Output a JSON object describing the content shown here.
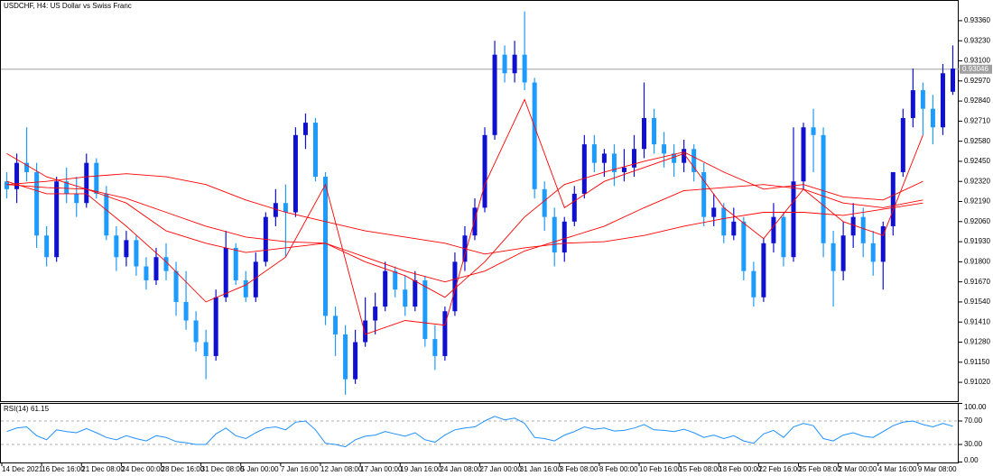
{
  "chart_data": [
    {
      "type": "candlestick",
      "title": "USDCHF, H4:  US Dollar vs Swiss Franc",
      "categories": [
        "14 Dec 2021",
        null,
        null,
        null,
        "16 Dec 16:00",
        null,
        null,
        null,
        "21 Dec 08:00",
        null,
        null,
        null,
        "24 Dec 00:00",
        null,
        null,
        null,
        "28 Dec 16:00",
        null,
        null,
        null,
        "31 Dec 08:00",
        null,
        null,
        null,
        "5 Jan 00:00",
        null,
        null,
        null,
        "7 Jan 16:00",
        null,
        null,
        null,
        "12 Jan 08:00",
        null,
        null,
        null,
        "17 Jan 00:00",
        null,
        null,
        null,
        "19 Jan 16:00",
        null,
        null,
        null,
        "24 Jan 08:00",
        null,
        null,
        null,
        "27 Jan 00:00",
        null,
        null,
        null,
        "31 Jan 16:00",
        null,
        null,
        null,
        "3 Feb 08:00",
        null,
        null,
        null,
        "8 Feb 00:00",
        null,
        null,
        null,
        "10 Feb 16:00",
        null,
        null,
        null,
        "15 Feb 08:00",
        null,
        null,
        null,
        "18 Feb 00:00",
        null,
        null,
        null,
        "22 Feb 16:00",
        null,
        null,
        null,
        "25 Feb 08:00",
        null,
        null,
        null,
        "2 Mar 00:00",
        null,
        null,
        null,
        "4 Mar 16:00",
        null,
        null,
        null,
        "9 Mar 08:00",
        null,
        null,
        null
      ],
      "open": [
        0.9232,
        0.9227,
        0.9244,
        0.9238,
        0.9197,
        0.9183,
        0.9232,
        0.9224,
        0.9218,
        0.9244,
        0.9224,
        0.9197,
        0.9183,
        0.9194,
        0.9177,
        0.9168,
        0.9183,
        0.9174,
        0.9154,
        0.9142,
        0.9128,
        0.9119,
        0.9157,
        0.9189,
        0.9168,
        0.9157,
        0.918,
        0.9209,
        0.9218,
        0.9212,
        0.9262,
        0.927,
        0.9235,
        0.9145,
        0.9133,
        0.9104,
        0.9128,
        0.9142,
        0.9151,
        0.9174,
        0.9162,
        0.9151,
        0.9168,
        0.913,
        0.9119,
        0.9148,
        0.918,
        0.9197,
        0.9215,
        0.9262,
        0.9314,
        0.9302,
        0.9314,
        0.9296,
        0.9227,
        0.9209,
        0.9186,
        0.9206,
        0.9224,
        0.9256,
        0.9244,
        0.925,
        0.9238,
        0.9241,
        0.9253,
        0.9273,
        0.9256,
        0.925,
        0.9244,
        0.9253,
        0.9238,
        0.9209,
        0.9215,
        0.9197,
        0.9206,
        0.9174,
        0.9157,
        0.9192,
        0.9209,
        0.9183,
        0.9232,
        0.9267,
        0.9262,
        0.9192,
        0.9174,
        0.9197,
        0.9209,
        0.9192,
        0.918,
        0.9203,
        0.9238,
        0.9273,
        0.9291,
        0.9279,
        0.9267,
        0.929
      ],
      "high": [
        0.9238,
        0.925,
        0.9267,
        0.9244,
        0.9203,
        0.9235,
        0.9241,
        0.9235,
        0.925,
        0.9247,
        0.9229,
        0.9203,
        0.92,
        0.9197,
        0.9183,
        0.9189,
        0.9192,
        0.918,
        0.9174,
        0.9148,
        0.9136,
        0.9162,
        0.92,
        0.9192,
        0.9174,
        0.9186,
        0.9212,
        0.9227,
        0.923,
        0.9267,
        0.9276,
        0.9273,
        0.9238,
        0.9151,
        0.9139,
        0.9136,
        0.9157,
        0.916,
        0.918,
        0.9177,
        0.9171,
        0.9174,
        0.9171,
        0.9139,
        0.9151,
        0.9186,
        0.9203,
        0.9221,
        0.9267,
        0.9323,
        0.932,
        0.9323,
        0.9342,
        0.9299,
        0.9232,
        0.9215,
        0.9209,
        0.9229,
        0.9262,
        0.9262,
        0.9253,
        0.9256,
        0.9253,
        0.9262,
        0.9296,
        0.9279,
        0.9264,
        0.9256,
        0.9259,
        0.9256,
        0.9244,
        0.9224,
        0.9218,
        0.9215,
        0.9209,
        0.918,
        0.9195,
        0.9218,
        0.9212,
        0.9267,
        0.927,
        0.9279,
        0.9267,
        0.92,
        0.9206,
        0.9218,
        0.9215,
        0.92,
        0.9206,
        0.9238,
        0.9279,
        0.9305,
        0.9296,
        0.9288,
        0.9308,
        0.932
      ],
      "low": [
        0.9221,
        0.9218,
        0.9232,
        0.9189,
        0.9177,
        0.918,
        0.9218,
        0.9209,
        0.9215,
        0.9221,
        0.9194,
        0.9174,
        0.9177,
        0.9171,
        0.9162,
        0.9165,
        0.9168,
        0.9145,
        0.9136,
        0.9122,
        0.9104,
        0.9116,
        0.9154,
        0.9165,
        0.9154,
        0.9154,
        0.9177,
        0.9203,
        0.9183,
        0.9209,
        0.9253,
        0.9232,
        0.9139,
        0.9119,
        0.9094,
        0.9101,
        0.9125,
        0.9133,
        0.9148,
        0.9157,
        0.9145,
        0.9148,
        0.9125,
        0.911,
        0.9116,
        0.9145,
        0.9174,
        0.9194,
        0.9212,
        0.9259,
        0.9296,
        0.9296,
        0.9291,
        0.9221,
        0.92,
        0.9177,
        0.918,
        0.9203,
        0.9221,
        0.9238,
        0.9235,
        0.9229,
        0.9232,
        0.9235,
        0.9247,
        0.925,
        0.9241,
        0.9235,
        0.9238,
        0.9232,
        0.9203,
        0.9203,
        0.9192,
        0.9194,
        0.9168,
        0.9151,
        0.9154,
        0.9186,
        0.9177,
        0.918,
        0.9227,
        0.9238,
        0.9183,
        0.9151,
        0.9168,
        0.9189,
        0.9183,
        0.9171,
        0.9162,
        0.9197,
        0.9235,
        0.9267,
        0.9262,
        0.9256,
        0.9262,
        0.9288
      ],
      "close": [
        0.9227,
        0.9244,
        0.9238,
        0.9197,
        0.9183,
        0.9232,
        0.9224,
        0.9218,
        0.9244,
        0.9224,
        0.9197,
        0.9183,
        0.9194,
        0.9177,
        0.9168,
        0.9183,
        0.9174,
        0.9154,
        0.9142,
        0.9128,
        0.9119,
        0.9157,
        0.9189,
        0.9168,
        0.9157,
        0.918,
        0.9209,
        0.9218,
        0.9212,
        0.9262,
        0.927,
        0.9235,
        0.9145,
        0.9133,
        0.9104,
        0.9128,
        0.9142,
        0.9151,
        0.9174,
        0.9162,
        0.9151,
        0.9168,
        0.913,
        0.9119,
        0.9148,
        0.918,
        0.9197,
        0.9215,
        0.9262,
        0.9314,
        0.9302,
        0.9314,
        0.9296,
        0.9227,
        0.9209,
        0.9186,
        0.9206,
        0.9224,
        0.9256,
        0.9244,
        0.925,
        0.9238,
        0.9241,
        0.9253,
        0.9273,
        0.9256,
        0.925,
        0.9244,
        0.9253,
        0.9238,
        0.9209,
        0.9215,
        0.9197,
        0.9206,
        0.9174,
        0.9157,
        0.9192,
        0.9209,
        0.9183,
        0.9232,
        0.9267,
        0.9262,
        0.9192,
        0.9174,
        0.9197,
        0.9209,
        0.9192,
        0.918,
        0.9203,
        0.9238,
        0.9273,
        0.9291,
        0.9279,
        0.9267,
        0.9302,
        0.9305
      ],
      "bull_color": "#1010d0",
      "bear_color": "#1e9bff",
      "moving_averages": [
        {
          "color": "#ff0000",
          "values": [
            0.9232,
            0.9224,
            0.9224,
            0.9203,
            0.918,
            0.9154,
            0.9165,
            0.9183,
            0.923,
            0.9133,
            0.9142,
            0.9139,
            0.923,
            0.9285,
            0.9215,
            0.9232,
            0.9241,
            0.925,
            0.9215,
            0.9195,
            0.9227,
            0.9206,
            0.9197,
            0.9262
          ]
        },
        {
          "color": "#ff0000",
          "values": [
            0.925,
            0.9235,
            0.9227,
            0.9218,
            0.92,
            0.9192,
            0.9186,
            0.9189,
            0.9192,
            0.918,
            0.9171,
            0.9157,
            0.918,
            0.9209,
            0.923,
            0.9238,
            0.9245,
            0.9251,
            0.9238,
            0.9227,
            0.923,
            0.9222,
            0.922,
            0.9232
          ]
        },
        {
          "color": "#ff0000",
          "values": [
            0.923,
            0.9228,
            0.9227,
            0.9221,
            0.9212,
            0.9203,
            0.9196,
            0.9193,
            0.9192,
            0.9183,
            0.9174,
            0.9167,
            0.9174,
            0.9187,
            0.9195,
            0.9203,
            0.9215,
            0.9226,
            0.9228,
            0.923,
            0.9227,
            0.9218,
            0.9215,
            0.922
          ]
        },
        {
          "color": "#ff0000",
          "values": [
            0.923,
            0.9232,
            0.9235,
            0.9237,
            0.9235,
            0.923,
            0.922,
            0.9212,
            0.9206,
            0.92,
            0.9196,
            0.9192,
            0.9185,
            0.9189,
            0.9192,
            0.9193,
            0.9197,
            0.9203,
            0.9208,
            0.9212,
            0.9212,
            0.921,
            0.9214,
            0.9218
          ]
        }
      ],
      "bid": 0.93046,
      "ylim": [
        0.90898,
        0.93488
      ],
      "yticks": [
        {
          "value": 0.9336,
          "label": "0.93360"
        },
        {
          "value": 0.9323,
          "label": "0.93230"
        },
        {
          "value": 0.931,
          "label": "0.93100"
        },
        {
          "value": 0.9297,
          "label": "0.92970"
        },
        {
          "value": 0.9284,
          "label": "0.92840"
        },
        {
          "value": 0.9271,
          "label": "0.92710"
        },
        {
          "value": 0.9258,
          "label": "0.92580"
        },
        {
          "value": 0.9245,
          "label": "0.92450"
        },
        {
          "value": 0.9232,
          "label": "0.92320"
        },
        {
          "value": 0.9219,
          "label": "0.92190"
        },
        {
          "value": 0.9206,
          "label": "0.92060"
        },
        {
          "value": 0.9193,
          "label": "0.91930"
        },
        {
          "value": 0.918,
          "label": "0.91800"
        },
        {
          "value": 0.9167,
          "label": "0.91670"
        },
        {
          "value": 0.9154,
          "label": "0.91540"
        },
        {
          "value": 0.9141,
          "label": "0.91410"
        },
        {
          "value": 0.9128,
          "label": "0.91280"
        },
        {
          "value": 0.9115,
          "label": "0.91150"
        },
        {
          "value": 0.9102,
          "label": "0.91020"
        }
      ]
    },
    {
      "type": "line",
      "title": "RSI(14)",
      "color": "#1e90ff",
      "values": [
        52,
        58,
        60,
        45,
        38,
        55,
        52,
        50,
        57,
        50,
        42,
        38,
        45,
        40,
        36,
        45,
        42,
        35,
        33,
        30,
        30,
        48,
        58,
        45,
        40,
        50,
        58,
        60,
        55,
        68,
        70,
        55,
        32,
        30,
        26,
        38,
        44,
        46,
        52,
        48,
        44,
        50,
        38,
        34,
        46,
        55,
        58,
        60,
        70,
        78,
        72,
        75,
        66,
        42,
        40,
        36,
        46,
        52,
        60,
        56,
        58,
        53,
        54,
        58,
        64,
        55,
        54,
        52,
        56,
        50,
        42,
        46,
        40,
        45,
        36,
        32,
        48,
        54,
        42,
        60,
        66,
        62,
        40,
        36,
        46,
        50,
        44,
        42,
        52,
        62,
        68,
        70,
        64,
        60,
        66,
        61.15
      ],
      "levels": [
        70,
        30
      ],
      "ylim": [
        0,
        100
      ],
      "yticks": [
        {
          "value": 100,
          "label": "100.00"
        },
        {
          "value": 70,
          "label": "70.00"
        },
        {
          "value": 30,
          "label": "30.00"
        },
        {
          "value": 0,
          "label": "0.00"
        }
      ]
    }
  ]
}
